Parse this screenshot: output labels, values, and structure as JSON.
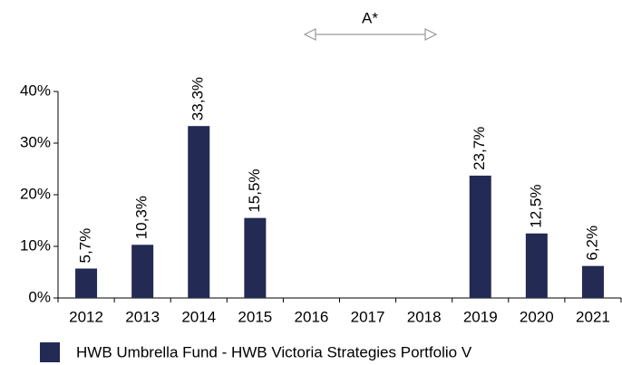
{
  "chart_data": {
    "type": "bar",
    "categories": [
      "2012",
      "2013",
      "2014",
      "2015",
      "2016",
      "2017",
      "2018",
      "2019",
      "2020",
      "2021"
    ],
    "series": [
      {
        "name": "HWB Umbrella Fund - HWB Victoria Strategies Portfolio V",
        "color": "#232a54",
        "values": [
          5.7,
          10.3,
          33.3,
          15.5,
          null,
          null,
          null,
          23.7,
          12.5,
          6.2
        ],
        "value_labels": [
          "5,7%",
          "10,3%",
          "33,3%",
          "15,5%",
          null,
          null,
          null,
          "23,7%",
          "12,5%",
          "6,2%"
        ]
      }
    ],
    "ylim": [
      0,
      40
    ],
    "yticks": [
      {
        "value": 0,
        "label": "0%"
      },
      {
        "value": 10,
        "label": "10%"
      },
      {
        "value": 20,
        "label": "20%"
      },
      {
        "value": 30,
        "label": "30%"
      },
      {
        "value": 40,
        "label": "40%"
      }
    ],
    "annotation": "A*",
    "legend": "bottom"
  }
}
